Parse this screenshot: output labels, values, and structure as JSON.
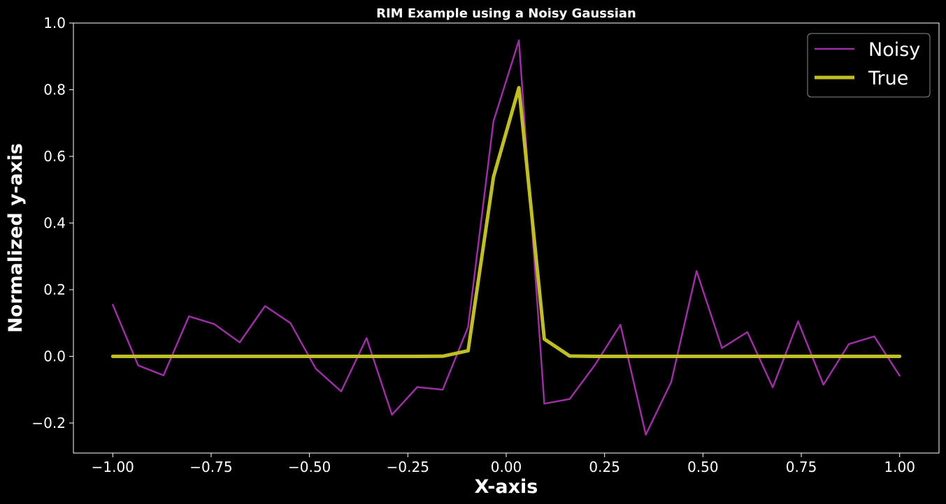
{
  "chart_data": {
    "type": "line",
    "title": "RIM Example using a Noisy Gaussian",
    "xlabel": "X-axis",
    "ylabel": "Normalized y-axis",
    "xlim": [
      -1.1,
      1.1
    ],
    "ylim": [
      -0.29,
      1.0
    ],
    "xticks": [
      -1.0,
      -0.75,
      -0.5,
      -0.25,
      0.0,
      0.25,
      0.5,
      0.75,
      1.0
    ],
    "xtick_labels": [
      "−1.00",
      "−0.75",
      "−0.50",
      "−0.25",
      "0.00",
      "0.25",
      "0.50",
      "0.75",
      "1.00"
    ],
    "yticks": [
      -0.2,
      0.0,
      0.2,
      0.4,
      0.6,
      0.8,
      1.0
    ],
    "ytick_labels": [
      "−0.2",
      "0.0",
      "0.2",
      "0.4",
      "0.6",
      "0.8",
      "1.0"
    ],
    "grid": false,
    "legend_position": "top-right",
    "background": "#000000",
    "foreground": "#ffffff",
    "series": [
      {
        "name": "Noisy",
        "color": "#9b2fa3",
        "x": [
          -1.0,
          -0.9355,
          -0.871,
          -0.8065,
          -0.7419,
          -0.6774,
          -0.6129,
          -0.5484,
          -0.4839,
          -0.4194,
          -0.3548,
          -0.2903,
          -0.2258,
          -0.1613,
          -0.0968,
          -0.0323,
          0.0323,
          0.0968,
          0.1613,
          0.2258,
          0.2903,
          0.3548,
          0.4194,
          0.4839,
          0.5484,
          0.6129,
          0.6774,
          0.7419,
          0.8065,
          0.871,
          0.9355,
          1.0
        ],
        "values": [
          0.155,
          -0.027,
          -0.057,
          0.12,
          0.097,
          0.042,
          0.151,
          0.1,
          -0.037,
          -0.105,
          0.055,
          -0.175,
          -0.092,
          -0.1,
          0.088,
          0.705,
          0.948,
          -0.142,
          -0.128,
          -0.025,
          0.095,
          -0.235,
          -0.077,
          0.256,
          0.025,
          0.073,
          -0.093,
          0.105,
          -0.085,
          0.037,
          0.06,
          -0.058
        ]
      },
      {
        "name": "True",
        "color": "#bfbf25",
        "x": [
          -1.0,
          -0.9355,
          -0.871,
          -0.8065,
          -0.7419,
          -0.6774,
          -0.6129,
          -0.5484,
          -0.4839,
          -0.4194,
          -0.3548,
          -0.2903,
          -0.2258,
          -0.1613,
          -0.0968,
          -0.0323,
          0.0323,
          0.0968,
          0.1613,
          0.2258,
          0.2903,
          0.3548,
          0.4194,
          0.4839,
          0.5484,
          0.6129,
          0.6774,
          0.7419,
          0.8065,
          0.871,
          0.9355,
          1.0
        ],
        "values": [
          0,
          0,
          0,
          0,
          0,
          0,
          0,
          0,
          0,
          0,
          0,
          0,
          0,
          0.0005,
          0.017,
          0.538,
          0.806,
          0.052,
          0.001,
          0,
          0,
          0,
          0,
          0,
          0,
          0,
          0,
          0,
          0,
          0,
          0,
          0
        ]
      }
    ]
  }
}
